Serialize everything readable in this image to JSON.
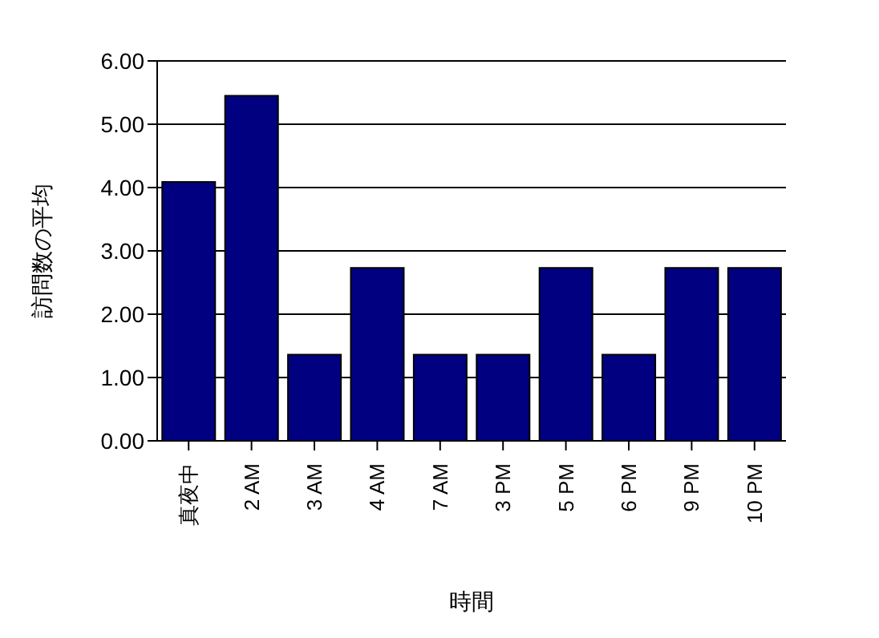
{
  "chart_data": {
    "type": "bar",
    "xlabel": "時間",
    "ylabel": "訪問数の平均",
    "categories": [
      "真夜中",
      "2 AM",
      "3 AM",
      "4 AM",
      "7 AM",
      "3 PM",
      "5 PM",
      "6 PM",
      "9 PM",
      "10 PM"
    ],
    "values": [
      4.09,
      5.45,
      1.36,
      2.73,
      1.36,
      1.36,
      2.73,
      1.36,
      2.73,
      2.73
    ],
    "color": "#000080",
    "ylim": [
      0,
      6
    ],
    "yticks": [
      {
        "value": 0,
        "label": "0.00"
      },
      {
        "value": 1,
        "label": "1.00"
      },
      {
        "value": 2,
        "label": "2.00"
      },
      {
        "value": 3,
        "label": "3.00"
      },
      {
        "value": 4,
        "label": "4.00"
      },
      {
        "value": 5,
        "label": "5.00"
      },
      {
        "value": 6,
        "label": "6.00"
      }
    ],
    "grid": "y",
    "legend": false
  }
}
